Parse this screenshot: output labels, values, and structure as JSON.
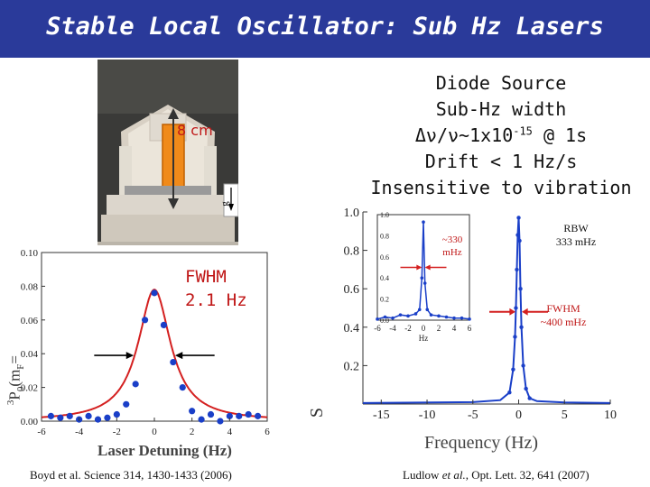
{
  "title": "Stable Local Oscillator: Sub Hz Lasers",
  "photo": {
    "size_label": "8 cm",
    "g_label": "g"
  },
  "desc": {
    "line1": "Diode Source",
    "line2": "Sub-Hz width",
    "line3a": "Δν/ν~1x10",
    "line3_exp": "-15",
    "line3b": " @ 1s",
    "line4": "Drift < 1 Hz/s",
    "line5": "Insensitive to vibration"
  },
  "left_chart_labels": {
    "fwhm_line1": "FWHM",
    "fwhm_line2": "2.1  Hz",
    "xlabel": "Laser Detuning (Hz)",
    "ylabel": "P₀(m_F=",
    "ylabel_main": "P",
    "ylabel_sub": "0",
    "ylabel_sup": "3",
    "ylabel_rest": "(m",
    "ylabel_sub2": "F",
    "ylabel_eq": "="
  },
  "right_chart_labels": {
    "xlabel": "Frequency (Hz)",
    "rbw_line1": "RBW",
    "rbw_line2": "333 mHz",
    "fwhm_line1": "FWHM",
    "fwhm_line2": "~400 mHz",
    "inset_line1": "~330",
    "inset_line2": "mHz",
    "inset_xlabel": "Hz",
    "ylabel_partial": "S"
  },
  "citations": {
    "left": "Boyd et al. Science 314, 1430-1433 (2006)",
    "right_pre": "Ludlow ",
    "right_em": "et al.",
    "right_post": ", Opt. Lett. 32, 641 (2007)"
  },
  "chart_data": [
    {
      "type": "scatter",
      "xlabel": "Laser Detuning (Hz)",
      "ylabel": "³P₀(m_F=",
      "xlim": [
        -6,
        6
      ],
      "ylim": [
        0,
        0.1
      ],
      "xticks": [
        -6,
        -4,
        -2,
        0,
        2,
        4,
        6
      ],
      "yticks": [
        0.0,
        0.02,
        0.04,
        0.06,
        0.08,
        0.1
      ],
      "ytick_labels": [
        "0.00",
        "0.02",
        "0.04",
        "0.06",
        "0.08",
        "0.10"
      ],
      "points": [
        [
          -5.5,
          0.003
        ],
        [
          -5.0,
          0.002
        ],
        [
          -4.5,
          0.003
        ],
        [
          -4.0,
          0.001
        ],
        [
          -3.5,
          0.003
        ],
        [
          -3.0,
          0.001
        ],
        [
          -2.5,
          0.002
        ],
        [
          -2.0,
          0.004
        ],
        [
          -1.5,
          0.01
        ],
        [
          -1.0,
          0.022
        ],
        [
          -0.5,
          0.06
        ],
        [
          0.0,
          0.076
        ],
        [
          0.5,
          0.057
        ],
        [
          1.0,
          0.035
        ],
        [
          1.5,
          0.02
        ],
        [
          2.0,
          0.006
        ],
        [
          2.5,
          0.001
        ],
        [
          3.0,
          0.004
        ],
        [
          3.5,
          0.0
        ],
        [
          4.0,
          0.003
        ],
        [
          4.5,
          0.003
        ],
        [
          5.0,
          0.004
        ],
        [
          5.5,
          0.003
        ]
      ],
      "fit": {
        "type": "lorentzian",
        "center": 0,
        "fwhm": 2.1,
        "peak": 0.078
      }
    },
    {
      "type": "line",
      "xlabel": "Frequency (Hz)",
      "xlim": [
        -17,
        10
      ],
      "ylim": [
        0,
        1.0
      ],
      "xticks": [
        -15,
        -10,
        -5,
        0,
        5,
        10
      ],
      "yticks": [
        0.2,
        0.4,
        0.6,
        0.8,
        1.0
      ],
      "series": [
        {
          "x": [
            -17,
            -5,
            -2,
            -1,
            -0.6,
            -0.4,
            -0.3,
            -0.2,
            -0.1,
            0,
            0.1,
            0.2,
            0.3,
            0.5,
            0.8,
            1.2,
            2,
            5,
            10
          ],
          "y": [
            0.005,
            0.01,
            0.02,
            0.06,
            0.18,
            0.35,
            0.5,
            0.7,
            0.88,
            0.97,
            0.85,
            0.6,
            0.4,
            0.2,
            0.08,
            0.03,
            0.015,
            0.008,
            0.005
          ]
        }
      ]
    },
    {
      "type": "line",
      "xlabel": "Hz",
      "xlim": [
        -6,
        6
      ],
      "ylim": [
        0,
        1.0
      ],
      "xticks": [
        -6,
        -4,
        -2,
        0,
        2,
        4,
        6
      ],
      "yticks": [
        0.0,
        0.2,
        0.4,
        0.6,
        0.8,
        1.0
      ],
      "ytick_labels": [
        "0.0",
        "0.2",
        "0.4",
        "0.6",
        "0.8",
        "1.0"
      ],
      "series": [
        {
          "x": [
            -6,
            -5,
            -4,
            -3,
            -2,
            -1,
            -0.5,
            -0.2,
            0,
            0.2,
            0.5,
            1,
            2,
            3,
            4,
            5,
            6
          ],
          "y": [
            0.01,
            0.03,
            0.02,
            0.05,
            0.04,
            0.06,
            0.1,
            0.4,
            0.93,
            0.35,
            0.1,
            0.05,
            0.04,
            0.03,
            0.02,
            0.02,
            0.01
          ]
        }
      ]
    }
  ]
}
